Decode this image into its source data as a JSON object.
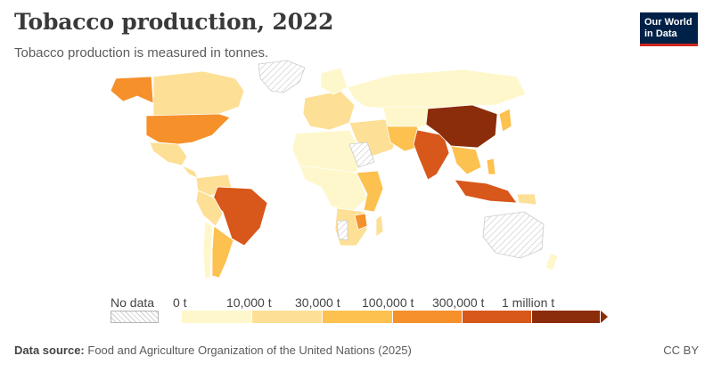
{
  "title": "Tobacco production, 2022",
  "subtitle": "Tobacco production is measured in tonnes.",
  "logo": {
    "line1": "Our World",
    "line2": "in Data"
  },
  "legend": {
    "no_data_label": "No data",
    "ticks": [
      "0 t",
      "10,000 t",
      "30,000 t",
      "100,000 t",
      "300,000 t",
      "1 million t"
    ],
    "bins": [
      {
        "from": "0 t",
        "to": "10,000 t",
        "color": "#fef7cb"
      },
      {
        "from": "10,000 t",
        "to": "30,000 t",
        "color": "#fddf95"
      },
      {
        "from": "30,000 t",
        "to": "100,000 t",
        "color": "#fcc14f"
      },
      {
        "from": "100,000 t",
        "to": "300,000 t",
        "color": "#f6902a"
      },
      {
        "from": "300,000 t",
        "to": "1 million t",
        "color": "#d8571a"
      },
      {
        "from": "1 million t",
        "to": "",
        "color": "#8b2c0a"
      }
    ]
  },
  "colors": {
    "no_data": "#e6e6e6",
    "border": "#ffffff",
    "bins": [
      "#fef7cb",
      "#fddf95",
      "#fcc14f",
      "#f6902a",
      "#d8571a",
      "#8b2c0a"
    ]
  },
  "source": {
    "label": "Data source:",
    "text": "Food and Agriculture Organization of the United Nations (2025)"
  },
  "license": "CC BY"
}
